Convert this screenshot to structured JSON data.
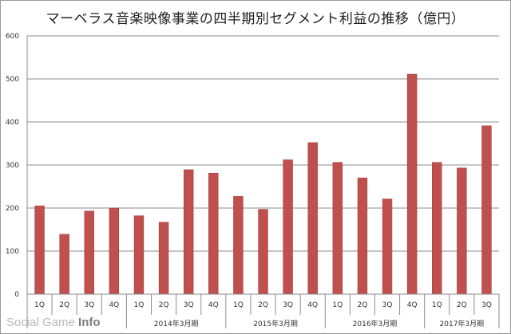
{
  "chart_data": {
    "type": "bar",
    "title": "マーベラス音楽映像事業の四半期別セグメント利益の推移（億円）",
    "categories": [
      "1Q",
      "2Q",
      "3Q",
      "4Q",
      "1Q",
      "2Q",
      "3Q",
      "4Q",
      "1Q",
      "2Q",
      "3Q",
      "4Q",
      "1Q",
      "2Q",
      "3Q",
      "4Q",
      "1Q",
      "2Q",
      "3Q"
    ],
    "groups": [
      {
        "label": "",
        "count": 4
      },
      {
        "label": "2014年3月期",
        "count": 4
      },
      {
        "label": "2015年3月期",
        "count": 4
      },
      {
        "label": "2016年3月期",
        "count": 4
      },
      {
        "label": "2017年3月期",
        "count": 3
      }
    ],
    "values": [
      205,
      139,
      193,
      200,
      182,
      167,
      289,
      281,
      227,
      197,
      312,
      352,
      306,
      270,
      221,
      511,
      306,
      293,
      391
    ],
    "ylim": [
      0,
      600
    ],
    "yticks": [
      0,
      100,
      200,
      300,
      400,
      500,
      600
    ],
    "grid": true,
    "bar_color": "#c0504d",
    "xlabel": "",
    "ylabel": ""
  },
  "watermark": {
    "text_light": "Social Game ",
    "text_bold": "Info"
  }
}
